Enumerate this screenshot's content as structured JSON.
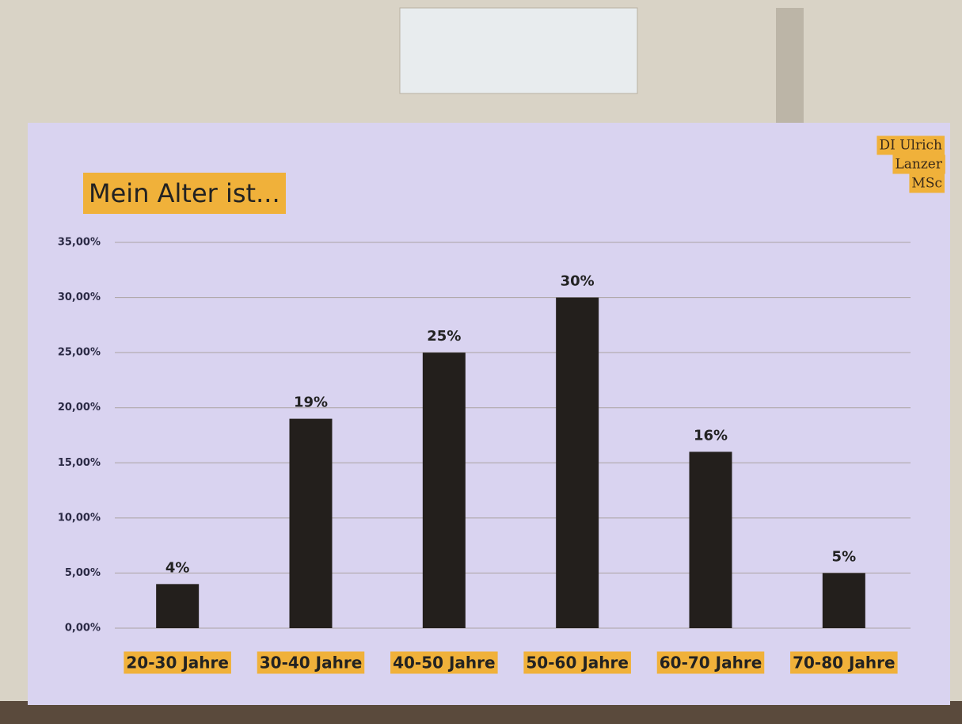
{
  "chart_data": {
    "type": "bar",
    "title": "Mein Alter ist...",
    "author": [
      "DI Ulrich",
      "Lanzer",
      "MSc"
    ],
    "categories": [
      "20-30 Jahre",
      "30-40 Jahre",
      "40-50 Jahre",
      "50-60 Jahre",
      "60-70 Jahre",
      "70-80 Jahre"
    ],
    "values": [
      4,
      19,
      25,
      30,
      16,
      5
    ],
    "value_labels": [
      "4%",
      "19%",
      "25%",
      "30%",
      "16%",
      "5%"
    ],
    "color": "#231f1c",
    "ylim": [
      0,
      35
    ],
    "yticks": [
      {
        "value": 0,
        "label": "0,00%"
      },
      {
        "value": 5,
        "label": "5,00%"
      },
      {
        "value": 10,
        "label": "10,00%"
      },
      {
        "value": 15,
        "label": "15,00%"
      },
      {
        "value": 20,
        "label": "20,00%"
      },
      {
        "value": 25,
        "label": "25,00%"
      },
      {
        "value": 30,
        "label": "30,00%"
      },
      {
        "value": 35,
        "label": "35,00%"
      }
    ],
    "grid": true
  }
}
